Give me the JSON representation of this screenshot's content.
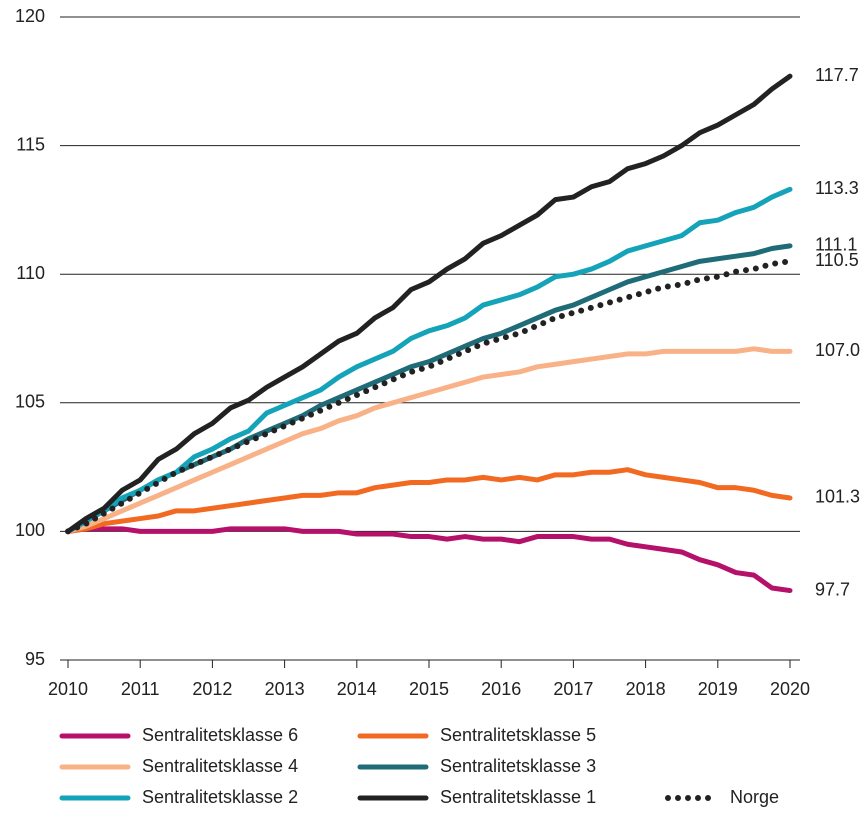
{
  "chart_data": {
    "type": "line",
    "x": [
      2010,
      2010.25,
      2010.5,
      2010.75,
      2011,
      2011.25,
      2011.5,
      2011.75,
      2012,
      2012.25,
      2012.5,
      2012.75,
      2013,
      2013.25,
      2013.5,
      2013.75,
      2014,
      2014.25,
      2014.5,
      2014.75,
      2015,
      2015.25,
      2015.5,
      2015.75,
      2016,
      2016.25,
      2016.5,
      2016.75,
      2017,
      2017.25,
      2017.5,
      2017.75,
      2018,
      2018.25,
      2018.5,
      2018.75,
      2019,
      2019.25,
      2019.5,
      2019.75,
      2020
    ],
    "xlim": [
      2010,
      2020
    ],
    "xticks": [
      2010,
      2011,
      2012,
      2013,
      2014,
      2015,
      2016,
      2017,
      2018,
      2019,
      2020
    ],
    "ylim": [
      95,
      120
    ],
    "yticks": [
      95,
      100,
      105,
      110,
      115,
      120
    ],
    "grid": true,
    "series": [
      {
        "name": "Sentralitetsklasse 6",
        "color": "#b5106a",
        "end_label": "97.7",
        "values": [
          100,
          100.1,
          100.1,
          100.1,
          100.0,
          100.0,
          100.0,
          100.0,
          100.0,
          100.1,
          100.1,
          100.1,
          100.1,
          100.0,
          100.0,
          100.0,
          99.9,
          99.9,
          99.9,
          99.8,
          99.8,
          99.7,
          99.8,
          99.7,
          99.7,
          99.6,
          99.8,
          99.8,
          99.8,
          99.7,
          99.7,
          99.5,
          99.4,
          99.3,
          99.2,
          98.9,
          98.7,
          98.4,
          98.3,
          97.8,
          97.7
        ]
      },
      {
        "name": "Sentralitetsklasse 5",
        "color": "#f26a21",
        "end_label": "101.3",
        "values": [
          100,
          100.1,
          100.3,
          100.4,
          100.5,
          100.6,
          100.8,
          100.8,
          100.9,
          101.0,
          101.1,
          101.2,
          101.3,
          101.4,
          101.4,
          101.5,
          101.5,
          101.7,
          101.8,
          101.9,
          101.9,
          102.0,
          102.0,
          102.1,
          102.0,
          102.1,
          102.0,
          102.2,
          102.2,
          102.3,
          102.3,
          102.4,
          102.2,
          102.1,
          102.0,
          101.9,
          101.7,
          101.7,
          101.6,
          101.4,
          101.3
        ]
      },
      {
        "name": "Sentralitetsklasse 4",
        "color": "#f9b287",
        "end_label": "107.0",
        "values": [
          100,
          100.2,
          100.5,
          100.8,
          101.1,
          101.4,
          101.7,
          102.0,
          102.3,
          102.6,
          102.9,
          103.2,
          103.5,
          103.8,
          104.0,
          104.3,
          104.5,
          104.8,
          105.0,
          105.2,
          105.4,
          105.6,
          105.8,
          106.0,
          106.1,
          106.2,
          106.4,
          106.5,
          106.6,
          106.7,
          106.8,
          106.9,
          106.9,
          107.0,
          107.0,
          107.0,
          107.0,
          107.0,
          107.1,
          107.0,
          107.0
        ]
      },
      {
        "name": "Sentralitetsklasse 3",
        "color": "#1f6b78",
        "end_label": "111.1",
        "values": [
          100,
          100.4,
          100.8,
          101.2,
          101.6,
          102.0,
          102.3,
          102.6,
          102.9,
          103.2,
          103.6,
          103.9,
          104.2,
          104.5,
          104.9,
          105.2,
          105.5,
          105.8,
          106.1,
          106.4,
          106.6,
          106.9,
          107.2,
          107.5,
          107.7,
          108.0,
          108.3,
          108.6,
          108.8,
          109.1,
          109.4,
          109.7,
          109.9,
          110.1,
          110.3,
          110.5,
          110.6,
          110.7,
          110.8,
          111.0,
          111.1
        ]
      },
      {
        "name": "Sentralitetsklasse 2",
        "color": "#14a3b8",
        "end_label": "113.3",
        "values": [
          100,
          100.4,
          100.8,
          101.3,
          101.6,
          102.0,
          102.3,
          102.9,
          103.2,
          103.6,
          103.9,
          104.6,
          104.9,
          105.2,
          105.5,
          106.0,
          106.4,
          106.7,
          107.0,
          107.5,
          107.8,
          108.0,
          108.3,
          108.8,
          109.0,
          109.2,
          109.5,
          109.9,
          110.0,
          110.2,
          110.5,
          110.9,
          111.1,
          111.3,
          111.5,
          112.0,
          112.1,
          112.4,
          112.6,
          113.0,
          113.3
        ]
      },
      {
        "name": "Sentralitetsklasse 1",
        "color": "#222222",
        "end_label": "117.7",
        "values": [
          100,
          100.5,
          100.9,
          101.6,
          102.0,
          102.8,
          103.2,
          103.8,
          104.2,
          104.8,
          105.1,
          105.6,
          106.0,
          106.4,
          106.9,
          107.4,
          107.7,
          108.3,
          108.7,
          109.4,
          109.7,
          110.2,
          110.6,
          111.2,
          111.5,
          111.9,
          112.3,
          112.9,
          113.0,
          113.4,
          113.6,
          114.1,
          114.3,
          114.6,
          115.0,
          115.5,
          115.8,
          116.2,
          116.6,
          117.2,
          117.7
        ]
      },
      {
        "name": "Norge",
        "color": "#222222",
        "dash": "dotted",
        "end_label": "110.5",
        "values": [
          100,
          100.3,
          100.7,
          101.1,
          101.5,
          101.9,
          102.3,
          102.6,
          102.9,
          103.2,
          103.5,
          103.8,
          104.1,
          104.4,
          104.7,
          105.0,
          105.3,
          105.6,
          105.9,
          106.2,
          106.4,
          106.7,
          107.0,
          107.3,
          107.5,
          107.7,
          108.0,
          108.3,
          108.5,
          108.7,
          108.9,
          109.1,
          109.3,
          109.5,
          109.6,
          109.8,
          109.9,
          110.1,
          110.2,
          110.4,
          110.5
        ]
      }
    ]
  }
}
